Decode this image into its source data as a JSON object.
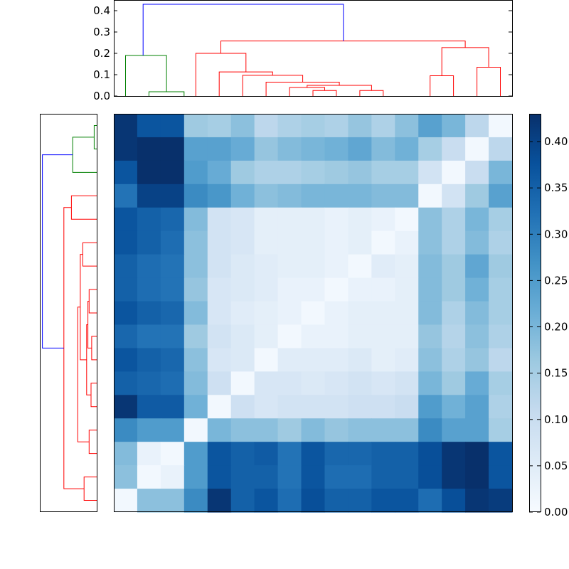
{
  "chart_data": {
    "type": "heatmap",
    "title": "",
    "xlabel": "",
    "ylabel": "",
    "colormap": "Blues",
    "colorbar": {
      "range": [
        0.0,
        0.43
      ],
      "ticks": [
        "0.00",
        "0.05",
        "0.10",
        "0.15",
        "0.20",
        "0.25",
        "0.30",
        "0.35",
        "0.40"
      ],
      "tick_values": [
        0.0,
        0.05,
        0.1,
        0.15,
        0.2,
        0.25,
        0.3,
        0.35,
        0.4
      ]
    },
    "matrix": [
      [
        0.42,
        0.37,
        0.37,
        0.16,
        0.15,
        0.18,
        0.12,
        0.14,
        0.15,
        0.14,
        0.17,
        0.14,
        0.18,
        0.24,
        0.2,
        0.12,
        0.01
      ],
      [
        0.42,
        0.43,
        0.43,
        0.24,
        0.24,
        0.22,
        0.17,
        0.19,
        0.2,
        0.21,
        0.23,
        0.19,
        0.21,
        0.15,
        0.1,
        0.01,
        0.12
      ],
      [
        0.37,
        0.43,
        0.43,
        0.25,
        0.22,
        0.16,
        0.14,
        0.14,
        0.15,
        0.16,
        0.17,
        0.15,
        0.15,
        0.08,
        0.01,
        0.1,
        0.2
      ],
      [
        0.32,
        0.4,
        0.4,
        0.28,
        0.26,
        0.21,
        0.18,
        0.19,
        0.2,
        0.2,
        0.2,
        0.19,
        0.19,
        0.01,
        0.08,
        0.16,
        0.24
      ],
      [
        0.37,
        0.35,
        0.34,
        0.19,
        0.08,
        0.07,
        0.04,
        0.04,
        0.04,
        0.03,
        0.04,
        0.03,
        0.01,
        0.18,
        0.14,
        0.2,
        0.15
      ],
      [
        0.37,
        0.35,
        0.33,
        0.18,
        0.08,
        0.07,
        0.04,
        0.04,
        0.04,
        0.03,
        0.04,
        0.01,
        0.03,
        0.18,
        0.14,
        0.19,
        0.14
      ],
      [
        0.35,
        0.33,
        0.32,
        0.18,
        0.08,
        0.06,
        0.05,
        0.04,
        0.04,
        0.03,
        0.01,
        0.05,
        0.04,
        0.19,
        0.16,
        0.23,
        0.16
      ],
      [
        0.35,
        0.33,
        0.32,
        0.17,
        0.07,
        0.06,
        0.05,
        0.03,
        0.03,
        0.01,
        0.03,
        0.03,
        0.04,
        0.19,
        0.16,
        0.21,
        0.15
      ],
      [
        0.37,
        0.35,
        0.34,
        0.19,
        0.07,
        0.05,
        0.04,
        0.03,
        0.01,
        0.03,
        0.04,
        0.04,
        0.04,
        0.19,
        0.14,
        0.19,
        0.15
      ],
      [
        0.34,
        0.32,
        0.32,
        0.16,
        0.08,
        0.06,
        0.04,
        0.01,
        0.03,
        0.03,
        0.04,
        0.04,
        0.04,
        0.17,
        0.13,
        0.18,
        0.14
      ],
      [
        0.37,
        0.35,
        0.34,
        0.18,
        0.07,
        0.06,
        0.01,
        0.05,
        0.05,
        0.05,
        0.06,
        0.04,
        0.05,
        0.18,
        0.14,
        0.17,
        0.12
      ],
      [
        0.35,
        0.34,
        0.33,
        0.19,
        0.09,
        0.01,
        0.07,
        0.07,
        0.06,
        0.07,
        0.08,
        0.07,
        0.08,
        0.2,
        0.16,
        0.22,
        0.15
      ],
      [
        0.42,
        0.36,
        0.36,
        0.21,
        0.01,
        0.09,
        0.07,
        0.08,
        0.08,
        0.08,
        0.09,
        0.09,
        0.1,
        0.25,
        0.21,
        0.24,
        0.14
      ],
      [
        0.28,
        0.25,
        0.25,
        0.01,
        0.2,
        0.18,
        0.18,
        0.16,
        0.19,
        0.17,
        0.18,
        0.18,
        0.18,
        0.28,
        0.24,
        0.24,
        0.15
      ],
      [
        0.19,
        0.03,
        0.01,
        0.25,
        0.37,
        0.35,
        0.36,
        0.32,
        0.37,
        0.34,
        0.34,
        0.35,
        0.35,
        0.38,
        0.42,
        0.43,
        0.37
      ],
      [
        0.18,
        0.01,
        0.03,
        0.25,
        0.37,
        0.35,
        0.35,
        0.32,
        0.37,
        0.33,
        0.33,
        0.35,
        0.35,
        0.38,
        0.42,
        0.43,
        0.37
      ],
      [
        0.01,
        0.18,
        0.18,
        0.28,
        0.42,
        0.35,
        0.37,
        0.33,
        0.38,
        0.35,
        0.35,
        0.37,
        0.37,
        0.33,
        0.38,
        0.42,
        0.41
      ]
    ],
    "top_dendrogram": {
      "yticks": [
        "0.0",
        "0.1",
        "0.2",
        "0.3",
        "0.4"
      ],
      "ytick_values": [
        0.0,
        0.1,
        0.2,
        0.3,
        0.4
      ],
      "ylim": [
        0.0,
        0.45
      ],
      "xlim": [
        0,
        17
      ],
      "links": [
        {
          "xs": [
            1.5,
            1.5,
            3.0,
            3.0
          ],
          "ys": [
            0.0,
            0.02,
            0.02,
            0.0
          ],
          "color": "#008000"
        },
        {
          "xs": [
            0.5,
            0.5,
            2.25,
            2.25
          ],
          "ys": [
            0.0,
            0.19,
            0.19,
            0.02
          ],
          "color": "#008000"
        },
        {
          "xs": [
            8.5,
            8.5,
            9.5,
            9.5
          ],
          "ys": [
            0.0,
            0.026,
            0.026,
            0.0
          ],
          "color": "#ff0000"
        },
        {
          "xs": [
            7.5,
            7.5,
            9.0,
            9.0
          ],
          "ys": [
            0.0,
            0.04,
            0.04,
            0.026
          ],
          "color": "#ff0000"
        },
        {
          "xs": [
            10.5,
            10.5,
            11.5,
            11.5
          ],
          "ys": [
            0.0,
            0.026,
            0.026,
            0.0
          ],
          "color": "#ff0000"
        },
        {
          "xs": [
            8.25,
            8.25,
            11.0,
            11.0
          ],
          "ys": [
            0.04,
            0.05,
            0.05,
            0.026
          ],
          "color": "#ff0000"
        },
        {
          "xs": [
            6.5,
            6.5,
            9.625,
            9.625
          ],
          "ys": [
            0.0,
            0.065,
            0.065,
            0.05
          ],
          "color": "#ff0000"
        },
        {
          "xs": [
            5.5,
            5.5,
            8.0625,
            8.0625
          ],
          "ys": [
            0.0,
            0.097,
            0.097,
            0.065
          ],
          "color": "#ff0000"
        },
        {
          "xs": [
            4.5,
            4.5,
            6.78,
            6.78
          ],
          "ys": [
            0.0,
            0.113,
            0.113,
            0.097
          ],
          "color": "#ff0000"
        },
        {
          "xs": [
            3.5,
            3.5,
            5.64,
            5.64
          ],
          "ys": [
            0.0,
            0.2,
            0.2,
            0.113
          ],
          "color": "#ff0000"
        },
        {
          "xs": [
            13.5,
            13.5,
            14.5,
            14.5
          ],
          "ys": [
            0.0,
            0.095,
            0.095,
            0.0
          ],
          "color": "#ff0000"
        },
        {
          "xs": [
            15.5,
            15.5,
            16.5,
            16.5
          ],
          "ys": [
            0.0,
            0.135,
            0.135,
            0.0
          ],
          "color": "#ff0000"
        },
        {
          "xs": [
            14.0,
            14.0,
            16.0,
            16.0
          ],
          "ys": [
            0.095,
            0.227,
            0.227,
            0.135
          ],
          "color": "#ff0000"
        },
        {
          "xs": [
            4.57,
            4.57,
            15.0,
            15.0
          ],
          "ys": [
            0.2,
            0.258,
            0.258,
            0.227
          ],
          "color": "#ff0000"
        },
        {
          "xs": [
            1.25,
            1.25,
            9.8,
            9.8
          ],
          "ys": [
            0.19,
            0.43,
            0.43,
            0.258
          ],
          "color": "#0000ff"
        }
      ]
    },
    "left_dendrogram": {
      "ylim": [
        0,
        17
      ],
      "xlim": [
        0.0,
        0.45
      ],
      "links": [
        {
          "ys": [
            0.5,
            0.5,
            1.5,
            1.5
          ],
          "xs": [
            0.0,
            0.02,
            0.02,
            0.0
          ],
          "color": "#008000"
        },
        {
          "ys": [
            1.0,
            1.0,
            2.5,
            2.5
          ],
          "xs": [
            0.02,
            0.19,
            0.19,
            0.0
          ],
          "color": "#008000"
        },
        {
          "ys": [
            3.5,
            3.5,
            4.5,
            4.5
          ],
          "xs": [
            0.0,
            0.2,
            0.2,
            0.0
          ],
          "color": "#ff0000"
        },
        {
          "ys": [
            5.5,
            5.5,
            6.5,
            6.5
          ],
          "xs": [
            0.0,
            0.11,
            0.11,
            0.0
          ],
          "color": "#ff0000"
        },
        {
          "ys": [
            7.5,
            7.5,
            8.5,
            8.5
          ],
          "xs": [
            0.0,
            0.06,
            0.06,
            0.0
          ],
          "color": "#ff0000"
        },
        {
          "ys": [
            9.5,
            9.5,
            10.5,
            10.5
          ],
          "xs": [
            0.0,
            0.04,
            0.04,
            0.0
          ],
          "color": "#ff0000"
        },
        {
          "ys": [
            8.0,
            8.0,
            10.0,
            10.0
          ],
          "xs": [
            0.06,
            0.07,
            0.07,
            0.04
          ],
          "color": "#ff0000"
        },
        {
          "ys": [
            11.5,
            11.5,
            12.5,
            12.5
          ],
          "xs": [
            0.0,
            0.045,
            0.045,
            0.0
          ],
          "color": "#ff0000"
        },
        {
          "ys": [
            9.0,
            9.0,
            12.0,
            12.0
          ],
          "xs": [
            0.07,
            0.08,
            0.08,
            0.045
          ],
          "color": "#ff0000"
        },
        {
          "ys": [
            6.0,
            6.0,
            10.5,
            10.5
          ],
          "xs": [
            0.11,
            0.13,
            0.13,
            0.08
          ],
          "color": "#ff0000"
        },
        {
          "ys": [
            13.5,
            13.5,
            14.5,
            14.5
          ],
          "xs": [
            0.0,
            0.06,
            0.06,
            0.0
          ],
          "color": "#ff0000"
        },
        {
          "ys": [
            8.25,
            8.25,
            14.0,
            14.0
          ],
          "xs": [
            0.13,
            0.15,
            0.15,
            0.06
          ],
          "color": "#ff0000"
        },
        {
          "ys": [
            15.5,
            15.5,
            16.5,
            16.5
          ],
          "xs": [
            0.0,
            0.1,
            0.1,
            0.0
          ],
          "color": "#ff0000"
        },
        {
          "ys": [
            4.0,
            4.0,
            16.0,
            16.0
          ],
          "xs": [
            0.2,
            0.26,
            0.26,
            0.1
          ],
          "color": "#ff0000"
        },
        {
          "ys": [
            1.75,
            1.75,
            10.0,
            10.0
          ],
          "xs": [
            0.19,
            0.43,
            0.43,
            0.26
          ],
          "color": "#0000ff"
        }
      ]
    }
  }
}
